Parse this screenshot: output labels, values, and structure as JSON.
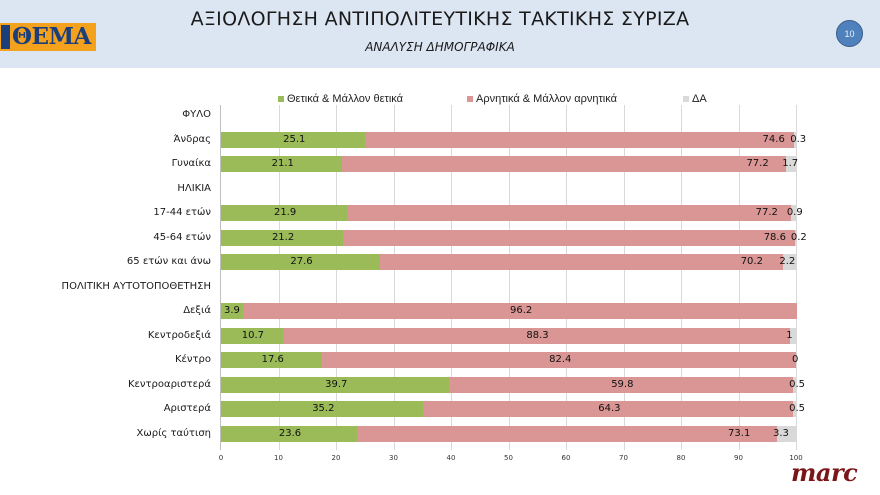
{
  "header": {
    "logo_text": "ΘΕΜΑ",
    "title": "ΑΞΙΟΛΟΓΗΣΗ ΑΝΤΙΠΟΛΙΤΕΥΤΙΚΗΣ ΤΑΚΤΙΚΗΣ ΣΥΡΙΖΑ",
    "subtitle": "ΑΝΑΛΥΣΗ ΔΗΜΟΓΡΑΦΙΚΑ",
    "page_number": "10"
  },
  "footer": {
    "brand": "marc"
  },
  "colors": {
    "positive": "#9bbb59",
    "negative": "#d99694",
    "dk": "#d9d9d9",
    "header_bg": "#dce6f2",
    "badge": "#4f81bd"
  },
  "chart_data": {
    "type": "bar",
    "orientation": "horizontal",
    "stacked": true,
    "title": "ΑΞΙΟΛΟΓΗΣΗ ΑΝΤΙΠΟΛΙΤΕΥΤΙΚΗΣ ΤΑΚΤΙΚΗΣ ΣΥΡΙΖΑ",
    "subtitle": "ΑΝΑΛΥΣΗ ΔΗΜΟΓΡΑΦΙΚΑ",
    "legend": [
      "Θετικά & Μάλλον θετικά",
      "Αρνητικά & Μάλλον αρνητικά",
      "ΔΑ"
    ],
    "legend_position": "top",
    "grid": true,
    "xlim": [
      0,
      100
    ],
    "x_ticks": [
      "0",
      "10",
      "20",
      "30",
      "40",
      "50",
      "60",
      "70",
      "80",
      "90",
      "100"
    ],
    "categories": [
      "ΦΥΛΟ",
      "Άνδρας",
      "Γυναίκα",
      "ΗΛΙΚΙΑ",
      "17-44 ετών",
      "45-64 ετών",
      "65 ετών και άνω",
      "ΠΟΛΙΤΙΚΗ ΑΥΤΟΤΟΠΟΘΕΤΗΣΗ",
      "Δεξιά",
      "Κεντροδεξιά",
      "Κέντρο",
      "Κεντροαριστερά",
      "Αριστερά",
      "Χωρίς ταύτιση"
    ],
    "series": [
      {
        "name": "Θετικά & Μάλλον θετικά",
        "values": [
          null,
          25.1,
          21.1,
          null,
          21.9,
          21.2,
          27.6,
          null,
          3.9,
          10.7,
          17.6,
          39.7,
          35.2,
          23.6
        ]
      },
      {
        "name": "Αρνητικά & Μάλλον αρνητικά",
        "values": [
          null,
          74.6,
          77.2,
          null,
          77.2,
          78.6,
          70.2,
          null,
          96.2,
          88.3,
          82.4,
          59.8,
          64.3,
          73.1
        ]
      },
      {
        "name": "ΔΑ",
        "values": [
          null,
          0.3,
          1.7,
          null,
          0.9,
          0.2,
          2.2,
          null,
          null,
          1,
          0,
          0.5,
          0.5,
          3.3
        ]
      }
    ]
  }
}
